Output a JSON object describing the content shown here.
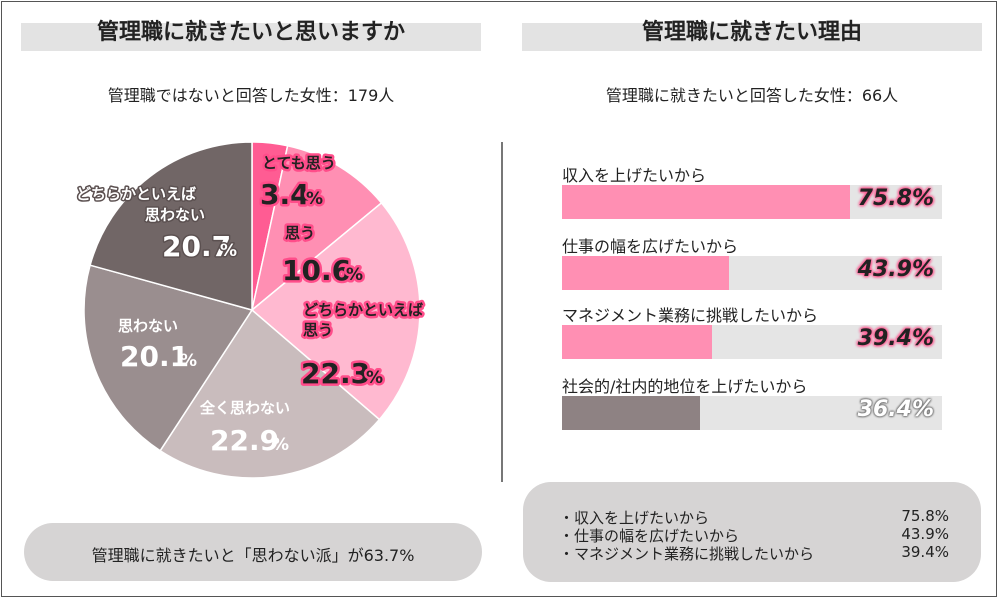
{
  "left_panel": {
    "title": "管理職に就きたいと思いますか",
    "subtitle": "管理職ではないと回答した女性：179人",
    "summary": "管理職に就きたいと「思わない派」が63.7%"
  },
  "right_panel": {
    "title": "管理職に就きたい理由",
    "subtitle": "管理職に就きたいと回答した女性：66人",
    "summary_items": [
      {
        "label": "・収入を上げたいから",
        "value": "75.8%"
      },
      {
        "label": "・仕事の幅を広げたいから",
        "value": "43.9%"
      },
      {
        "label": "・マネジメント業務に挑戦したいから",
        "value": "39.4%"
      }
    ]
  },
  "pie_labels": [
    {
      "name": "とても思う",
      "num": "3.4",
      "pct": "%"
    },
    {
      "name": "思う",
      "num": "10.6",
      "pct": "%"
    },
    {
      "name": "どちらかといえば",
      "name2": "思う",
      "num": "22.3",
      "pct": "%"
    },
    {
      "name": "全く思わない",
      "num": "22.9",
      "pct": "%"
    },
    {
      "name": "思わない",
      "num": "20.1",
      "pct": "%"
    },
    {
      "name": "どちらかといえば",
      "name2": "思わない",
      "num": "20.7",
      "pct": "%"
    }
  ],
  "bar_labels": [
    "75.8%",
    "43.9%",
    "39.4%",
    "36.4%"
  ],
  "chart_data": [
    {
      "type": "pie",
      "title": "管理職に就きたいと思いますか",
      "categories": [
        "とても思う",
        "思う",
        "どちらかといえば思う",
        "全く思わない",
        "思わない",
        "どちらかといえば思わない"
      ],
      "values": [
        3.4,
        10.6,
        22.3,
        22.9,
        20.1,
        20.7
      ],
      "colors": [
        "#ff5c93",
        "#ff8fb3",
        "#ffb9d0",
        "#c9bcbd",
        "#9a8e8f",
        "#716666"
      ],
      "start": "12 o'clock, clockwise"
    },
    {
      "type": "bar",
      "orientation": "horizontal",
      "title": "管理職に就きたい理由",
      "categories": [
        "収入を上げたいから",
        "仕事の幅を広げたいから",
        "マネジメント業務に挑戦したいから",
        "社会的/社内的地位を上げたいから"
      ],
      "values": [
        75.8,
        43.9,
        39.4,
        36.4
      ],
      "colors": [
        "#ff8fb3",
        "#ff8fb3",
        "#ff8fb3",
        "#8e8283"
      ],
      "xlim": [
        0,
        100
      ]
    }
  ]
}
